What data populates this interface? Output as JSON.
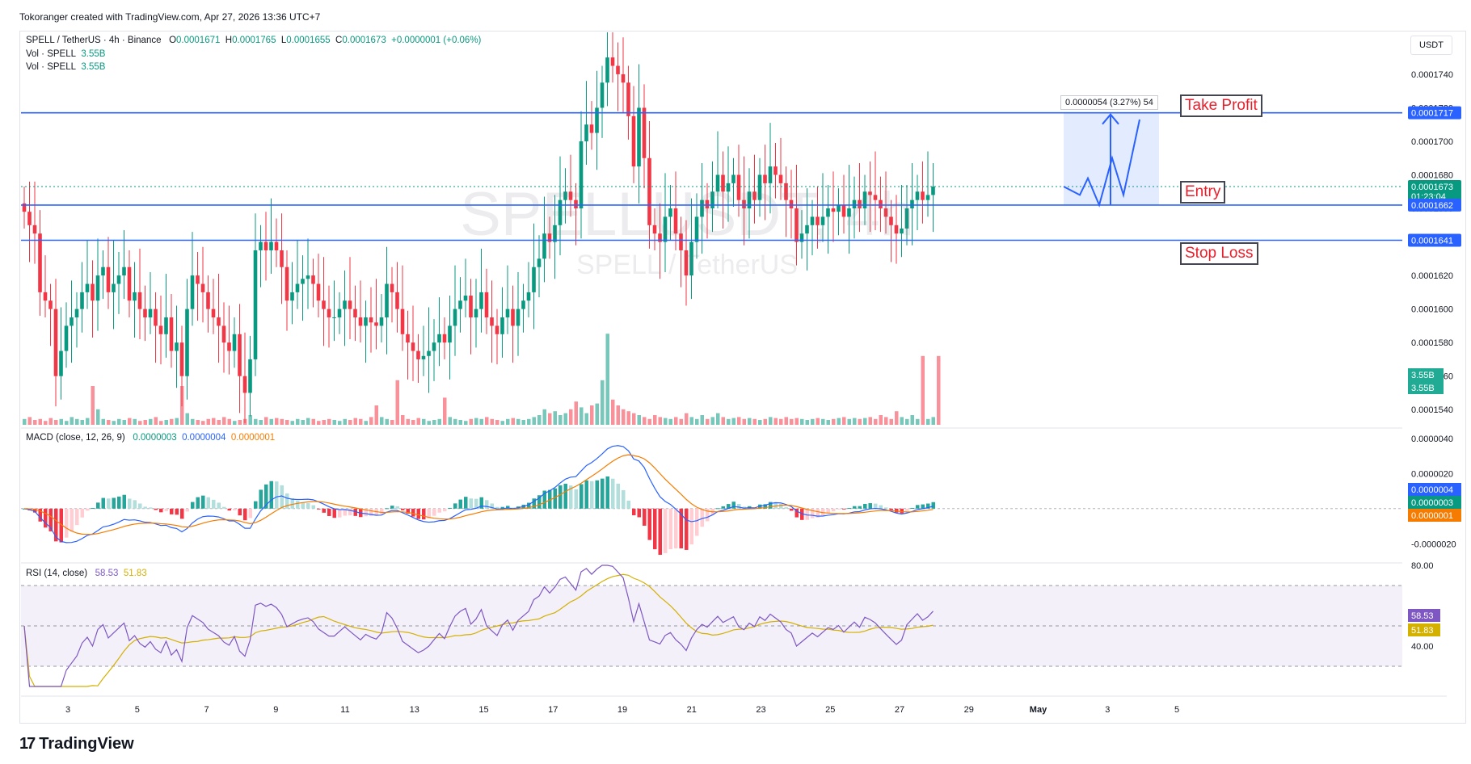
{
  "header": {
    "attribution": "Tokoranger created with TradingView.com, Apr 27, 2026 13:36 UTC+7"
  },
  "symbol": {
    "title": "SPELL / TetherUS · 4h · Binance",
    "o_label": "O",
    "o_value": "0.0001671",
    "h_label": "H",
    "h_value": "0.0001765",
    "l_label": "L",
    "l_value": "0.0001655",
    "c_label": "C",
    "c_value": "0.0001673",
    "change": "+0.0000001 (+0.06%)",
    "vol1_label": "Vol · SPELL",
    "vol1_value": "3.55B",
    "vol2_label": "Vol · SPELL",
    "vol2_value": "3.55B",
    "watermark_main": "SPELLUSDT, 4h",
    "watermark_sub": "SPELL / TetherUS"
  },
  "currency": "USDT",
  "macd_legend": {
    "label": "MACD (close, 12, 26, 9)",
    "hist": "0.0000003",
    "macd": "0.0000004",
    "signal": "0.0000001"
  },
  "rsi_legend": {
    "label": "RSI (14, close)",
    "rsi": "58.53",
    "ma": "51.83"
  },
  "annotations": {
    "take_profit": "Take Profit",
    "entry": "Entry",
    "stop_loss": "Stop Loss",
    "measure": "0.0000054 (3.27%) 54"
  },
  "brand": {
    "name": "TradingView"
  },
  "colors": {
    "up": "#089981",
    "down": "#f23645",
    "line": "#2962ff",
    "signal": "#f57c00",
    "rsi": "#7e57c2",
    "rsi_ma": "#d4b000"
  },
  "chart_data": {
    "type": "candlestick",
    "price_axis": {
      "ticks": [
        "0.0001740",
        "0.0001720",
        "0.0001700",
        "0.0001680",
        "0.0001660",
        "0.0001640",
        "0.0001620",
        "0.0001600",
        "0.0001580",
        "0.0001560",
        "0.0001540"
      ],
      "ylim": [
        0.000153,
        0.0001765
      ]
    },
    "price_labels": [
      {
        "value": 0.0001717,
        "text": "0.0001717",
        "color": "#2962ff"
      },
      {
        "value": 0.0001673,
        "text": "0.0001673",
        "sub": "01:23:04",
        "color": "#089981"
      },
      {
        "value": 0.0001662,
        "text": "0.0001662",
        "color": "#2962ff"
      },
      {
        "value": 0.0001641,
        "text": "0.0001641",
        "color": "#2962ff"
      }
    ],
    "volume_labels": [
      "3.55B",
      "3.55B"
    ],
    "levels": {
      "take_profit": 0.0001717,
      "entry": 0.0001662,
      "stop_loss": 0.0001641
    },
    "x_ticks": [
      "3",
      "5",
      "7",
      "9",
      "11",
      "13",
      "15",
      "17",
      "19",
      "21",
      "23",
      "25",
      "27",
      "29",
      "May",
      "3",
      "5"
    ],
    "macd_axis": {
      "ticks": [
        "0.0000040",
        "0.0000020",
        "-0.0000020"
      ],
      "ylim": [
        -3e-06,
        4.5e-06
      ]
    },
    "macd_labels": [
      {
        "text": "0.0000004",
        "color": "#2962ff"
      },
      {
        "text": "0.0000003",
        "color": "#089981"
      },
      {
        "text": "0.0000001",
        "color": "#f57c00"
      }
    ],
    "rsi_axis": {
      "ticks": [
        "80.00",
        "40.00"
      ],
      "ylim": [
        20,
        80
      ]
    },
    "rsi_labels": [
      {
        "text": "58.53",
        "color": "#7e57c2"
      },
      {
        "text": "51.83",
        "color": "#d4b000"
      }
    ],
    "closes": [
      0.0001658,
      0.000165,
      0.0001645,
      0.000161,
      0.0001605,
      0.00016,
      0.000156,
      0.0001575,
      0.000159,
      0.0001595,
      0.00016,
      0.000161,
      0.0001615,
      0.0001605,
      0.000162,
      0.0001625,
      0.000161,
      0.0001615,
      0.000162,
      0.0001625,
      0.0001605,
      0.000161,
      0.00016,
      0.0001595,
      0.00016,
      0.000159,
      0.0001585,
      0.0001595,
      0.0001575,
      0.000158,
      0.000156,
      0.00016,
      0.000162,
      0.0001615,
      0.000161,
      0.00016,
      0.0001595,
      0.000159,
      0.000158,
      0.0001575,
      0.0001585,
      0.000156,
      0.000155,
      0.000157,
      0.0001635,
      0.000164,
      0.0001635,
      0.000164,
      0.0001635,
      0.0001625,
      0.0001605,
      0.000161,
      0.0001615,
      0.0001618,
      0.000162,
      0.0001615,
      0.0001605,
      0.00016,
      0.0001595,
      0.0001595,
      0.00016,
      0.0001605,
      0.00016,
      0.0001595,
      0.000159,
      0.0001595,
      0.0001592,
      0.000159,
      0.0001595,
      0.0001615,
      0.000161,
      0.00016,
      0.0001585,
      0.000158,
      0.0001575,
      0.000157,
      0.0001572,
      0.0001575,
      0.000158,
      0.0001585,
      0.000158,
      0.000159,
      0.00016,
      0.0001605,
      0.0001608,
      0.0001595,
      0.00016,
      0.000161,
      0.0001595,
      0.000159,
      0.0001585,
      0.0001595,
      0.00016,
      0.000159,
      0.00016,
      0.0001605,
      0.000161,
      0.0001625,
      0.000163,
      0.0001645,
      0.000164,
      0.000165,
      0.0001665,
      0.000167,
      0.0001665,
      0.000166,
      0.00017,
      0.000171,
      0.0001705,
      0.000172,
      0.0001735,
      0.000175,
      0.0001745,
      0.000174,
      0.0001735,
      0.0001715,
      0.0001685,
      0.000172,
      0.000169,
      0.000165,
      0.0001645,
      0.000164,
      0.0001655,
      0.000166,
      0.0001645,
      0.0001635,
      0.000162,
      0.000164,
      0.0001655,
      0.0001665,
      0.000166,
      0.000167,
      0.000168,
      0.000167,
      0.0001675,
      0.000168,
      0.0001665,
      0.000166,
      0.000167,
      0.0001665,
      0.000168,
      0.0001675,
      0.0001685,
      0.000168,
      0.0001675,
      0.0001665,
      0.000166,
      0.000164,
      0.0001645,
      0.000165,
      0.0001655,
      0.000165,
      0.0001655,
      0.000166,
      0.0001658,
      0.0001662,
      0.0001655,
      0.000166,
      0.0001665,
      0.000166,
      0.000167,
      0.0001668,
      0.0001665,
      0.000166,
      0.0001655,
      0.000165,
      0.0001645,
      0.0001648,
      0.000166,
      0.0001665,
      0.000167,
      0.0001665,
      0.0001668,
      0.0001673
    ],
    "volumes": [
      0.3,
      0.4,
      0.25,
      0.3,
      0.2,
      0.35,
      0.25,
      0.3,
      0.2,
      0.4,
      0.3,
      0.25,
      0.35,
      2.0,
      0.8,
      0.3,
      0.25,
      0.2,
      0.3,
      0.25,
      0.35,
      0.3,
      0.2,
      0.25,
      0.3,
      0.4,
      0.2,
      0.25,
      0.3,
      0.35,
      2.0,
      0.6,
      0.3,
      0.25,
      0.2,
      0.3,
      0.35,
      0.25,
      0.4,
      0.3,
      0.2,
      0.25,
      0.3,
      0.5,
      0.3,
      0.25,
      0.4,
      0.3,
      0.35,
      0.3,
      0.25,
      0.2,
      0.3,
      0.25,
      0.35,
      0.3,
      0.2,
      0.25,
      0.3,
      0.25,
      0.2,
      0.3,
      0.25,
      0.35,
      0.3,
      0.2,
      0.4,
      1.0,
      0.4,
      0.3,
      0.25,
      2.3,
      0.5,
      0.3,
      0.25,
      0.35,
      0.3,
      0.2,
      0.25,
      0.3,
      1.4,
      0.4,
      0.3,
      0.25,
      0.2,
      0.3,
      0.35,
      0.3,
      0.4,
      0.3,
      0.25,
      0.2,
      0.3,
      0.35,
      0.3,
      0.25,
      0.3,
      0.4,
      0.5,
      0.8,
      0.6,
      0.7,
      0.5,
      0.6,
      0.8,
      1.2,
      0.9,
      0.6,
      1.0,
      1.1,
      2.3,
      4.7,
      1.3,
      1.0,
      0.8,
      0.7,
      0.6,
      0.5,
      0.4,
      0.3,
      0.5,
      0.4,
      0.35,
      0.3,
      0.4,
      0.3,
      0.6,
      0.4,
      0.3,
      0.5,
      0.3,
      0.4,
      0.6,
      0.4,
      0.3,
      0.35,
      0.4,
      0.3,
      0.35,
      0.3,
      0.25,
      0.3,
      0.4,
      0.35,
      0.3,
      0.4,
      0.3,
      0.35,
      0.3,
      0.25,
      0.3,
      0.35,
      0.3,
      0.25,
      0.3,
      0.35,
      0.4,
      0.3,
      0.35,
      0.3,
      0.35,
      0.4,
      0.3,
      0.5,
      0.4,
      0.3,
      0.7,
      0.4,
      0.3,
      0.5,
      0.3,
      3.55,
      0.3,
      0.4,
      3.55
    ]
  }
}
